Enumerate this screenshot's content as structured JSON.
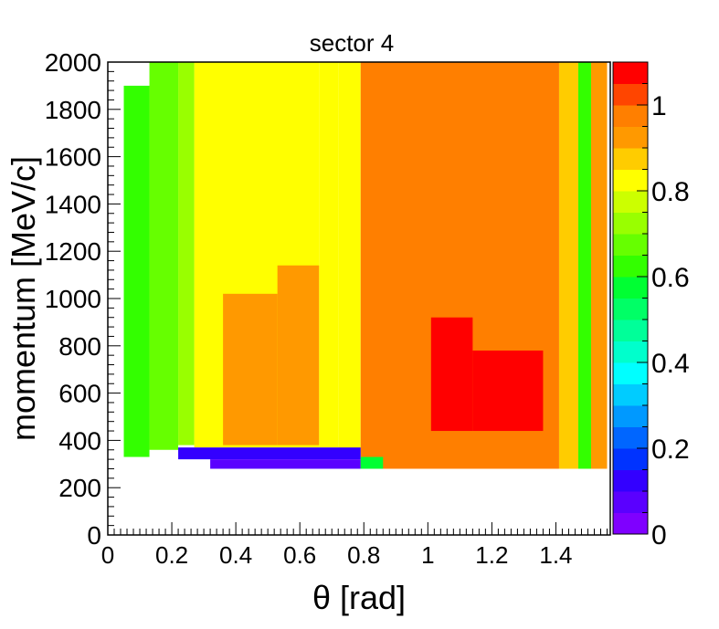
{
  "chart_data": {
    "type": "heatmap",
    "title": "sector 4",
    "xlabel": "θ [rad]",
    "ylabel": "momentum [MeV/c]",
    "xlim": [
      0,
      1.57
    ],
    "ylim": [
      0,
      2000
    ],
    "x_ticks": [
      "0",
      "0.2",
      "0.4",
      "0.6",
      "0.8",
      "1",
      "1.2",
      "1.4"
    ],
    "y_ticks": [
      "0",
      "200",
      "400",
      "600",
      "800",
      "1000",
      "1200",
      "1400",
      "1600",
      "1800",
      "2000"
    ],
    "colorbar": {
      "zlim": [
        0,
        1.1
      ],
      "ticks": [
        "0",
        "0.2",
        "0.4",
        "0.6",
        "0.8",
        "1"
      ],
      "palette": [
        "#7f00ff",
        "#5a00ff",
        "#3300ff",
        "#0033ff",
        "#0066ff",
        "#0099ff",
        "#00ccff",
        "#00ffff",
        "#00ffcc",
        "#00ff99",
        "#00ff66",
        "#00ff33",
        "#33ff00",
        "#66ff00",
        "#99ff00",
        "#ccff00",
        "#ffff00",
        "#ffcc00",
        "#ff9900",
        "#ff7f00",
        "#ff4500",
        "#ff0000"
      ]
    },
    "regions": [
      {
        "theta": [
          0.27,
          0.66
        ],
        "momentum": [
          370,
          2000
        ],
        "z": 0.84
      },
      {
        "theta": [
          0.66,
          0.72
        ],
        "momentum": [
          370,
          2000
        ],
        "z": 0.82
      },
      {
        "theta": [
          0.72,
          0.79
        ],
        "momentum": [
          350,
          2000
        ],
        "z": 0.85
      },
      {
        "theta": [
          0.36,
          0.53
        ],
        "momentum": [
          380,
          1020
        ],
        "z": 0.9
      },
      {
        "theta": [
          0.53,
          0.66
        ],
        "momentum": [
          380,
          1140
        ],
        "z": 0.9
      },
      {
        "theta": [
          0.79,
          1.41
        ],
        "momentum": [
          280,
          2000
        ],
        "z": 0.97
      },
      {
        "theta": [
          1.01,
          1.14
        ],
        "momentum": [
          440,
          920
        ],
        "z": 1.05
      },
      {
        "theta": [
          1.14,
          1.36
        ],
        "momentum": [
          440,
          780
        ],
        "z": 1.05
      },
      {
        "theta": [
          1.41,
          1.47
        ],
        "momentum": [
          280,
          2000
        ],
        "z": 0.88
      },
      {
        "theta": [
          1.47,
          1.51
        ],
        "momentum": [
          280,
          2000
        ],
        "z": 0.62
      },
      {
        "theta": [
          1.51,
          1.56
        ],
        "momentum": [
          280,
          2000
        ],
        "z": 0.93
      },
      {
        "theta": [
          0.22,
          0.27
        ],
        "momentum": [
          380,
          2000
        ],
        "z": 0.72
      },
      {
        "theta": [
          0.13,
          0.22
        ],
        "momentum": [
          360,
          2000
        ],
        "z": 0.7
      },
      {
        "theta": [
          0.05,
          0.13
        ],
        "momentum": [
          330,
          1900
        ],
        "z": 0.65
      },
      {
        "theta": [
          0.22,
          0.79
        ],
        "momentum": [
          320,
          370
        ],
        "z": 0.12
      },
      {
        "theta": [
          0.32,
          0.79
        ],
        "momentum": [
          280,
          320
        ],
        "z": 0.08
      },
      {
        "theta": [
          0.79,
          0.86
        ],
        "momentum": [
          280,
          330
        ],
        "z": 0.55
      }
    ]
  }
}
